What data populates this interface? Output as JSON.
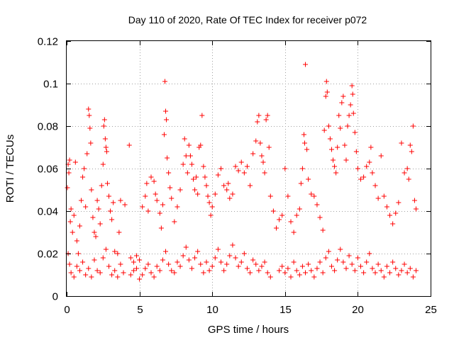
{
  "chart_data": {
    "type": "scatter",
    "title": "Day 110 of 2020, Rate Of TEC Index for receiver p072",
    "xlabel": "GPS time / hours",
    "ylabel": "ROTI / TECUs",
    "xlim": [
      0,
      25
    ],
    "ylim": [
      0,
      0.12
    ],
    "xticks": [
      "0",
      "5",
      "10",
      "15",
      "20",
      "25"
    ],
    "yticks": [
      "0",
      "0.02",
      "0.04",
      "0.06",
      "0.08",
      "0.1",
      "0.12"
    ],
    "grid": true,
    "marker": "+",
    "color": "#ff0000",
    "series": [
      {
        "points": [
          [
            0.05,
            0.051
          ],
          [
            0.1,
            0.062
          ],
          [
            0.15,
            0.058
          ],
          [
            0.2,
            0.064
          ],
          [
            0.25,
            0.035
          ],
          [
            0.3,
            0.041
          ],
          [
            0.4,
            0.03
          ],
          [
            0.5,
            0.038
          ],
          [
            0.6,
            0.063
          ],
          [
            0.7,
            0.026
          ],
          [
            0.8,
            0.02
          ],
          [
            0.9,
            0.033
          ],
          [
            1.0,
            0.045
          ],
          [
            1.1,
            0.056
          ],
          [
            1.2,
            0.06
          ],
          [
            1.3,
            0.042
          ],
          [
            1.4,
            0.067
          ],
          [
            1.5,
            0.088
          ],
          [
            1.55,
            0.085
          ],
          [
            1.6,
            0.079
          ],
          [
            1.65,
            0.072
          ],
          [
            1.7,
            0.05
          ],
          [
            1.8,
            0.037
          ],
          [
            1.9,
            0.03
          ],
          [
            2.0,
            0.028
          ],
          [
            2.1,
            0.045
          ],
          [
            2.2,
            0.041
          ],
          [
            2.3,
            0.034
          ],
          [
            2.4,
            0.052
          ],
          [
            2.5,
            0.062
          ],
          [
            2.55,
            0.08
          ],
          [
            2.6,
            0.083
          ],
          [
            2.65,
            0.074
          ],
          [
            2.7,
            0.07
          ],
          [
            2.75,
            0.068
          ],
          [
            2.8,
            0.053
          ],
          [
            2.9,
            0.047
          ],
          [
            3.0,
            0.04
          ],
          [
            3.1,
            0.036
          ],
          [
            3.2,
            0.044
          ],
          [
            3.3,
            0.021
          ],
          [
            3.5,
            0.02
          ],
          [
            3.6,
            0.03
          ],
          [
            3.7,
            0.045
          ],
          [
            4.0,
            0.043
          ],
          [
            4.3,
            0.071
          ],
          [
            4.4,
            0.018
          ],
          [
            4.6,
            0.016
          ],
          [
            4.8,
            0.019
          ],
          [
            5.0,
            0.017
          ],
          [
            5.2,
            0.042
          ],
          [
            5.4,
            0.047
          ],
          [
            5.5,
            0.053
          ],
          [
            5.6,
            0.04
          ],
          [
            5.8,
            0.056
          ],
          [
            6.0,
            0.054
          ],
          [
            6.1,
            0.048
          ],
          [
            6.2,
            0.045
          ],
          [
            6.4,
            0.039
          ],
          [
            6.5,
            0.032
          ],
          [
            6.6,
            0.043
          ],
          [
            6.7,
            0.076
          ],
          [
            6.75,
            0.101
          ],
          [
            6.8,
            0.087
          ],
          [
            6.85,
            0.083
          ],
          [
            6.9,
            0.065
          ],
          [
            7.0,
            0.058
          ],
          [
            7.1,
            0.051
          ],
          [
            7.2,
            0.046
          ],
          [
            7.4,
            0.035
          ],
          [
            7.6,
            0.042
          ],
          [
            7.8,
            0.05
          ],
          [
            8.0,
            0.062
          ],
          [
            8.1,
            0.074
          ],
          [
            8.2,
            0.066
          ],
          [
            8.3,
            0.058
          ],
          [
            8.4,
            0.071
          ],
          [
            8.5,
            0.066
          ],
          [
            8.6,
            0.062
          ],
          [
            8.7,
            0.055
          ],
          [
            8.8,
            0.05
          ],
          [
            8.9,
            0.056
          ],
          [
            9.0,
            0.048
          ],
          [
            9.1,
            0.07
          ],
          [
            9.2,
            0.071
          ],
          [
            9.3,
            0.085
          ],
          [
            9.4,
            0.061
          ],
          [
            9.5,
            0.056
          ],
          [
            9.6,
            0.052
          ],
          [
            9.7,
            0.047
          ],
          [
            9.8,
            0.044
          ],
          [
            9.9,
            0.038
          ],
          [
            10.0,
            0.042
          ],
          [
            10.2,
            0.048
          ],
          [
            10.4,
            0.057
          ],
          [
            10.6,
            0.06
          ],
          [
            10.8,
            0.052
          ],
          [
            11.0,
            0.05
          ],
          [
            11.1,
            0.053
          ],
          [
            11.2,
            0.046
          ],
          [
            11.4,
            0.048
          ],
          [
            11.6,
            0.061
          ],
          [
            11.8,
            0.059
          ],
          [
            12.0,
            0.063
          ],
          [
            12.2,
            0.058
          ],
          [
            12.4,
            0.061
          ],
          [
            12.6,
            0.052
          ],
          [
            12.8,
            0.067
          ],
          [
            13.0,
            0.073
          ],
          [
            13.1,
            0.082
          ],
          [
            13.2,
            0.085
          ],
          [
            13.3,
            0.072
          ],
          [
            13.4,
            0.066
          ],
          [
            13.5,
            0.063
          ],
          [
            13.6,
            0.058
          ],
          [
            13.7,
            0.083
          ],
          [
            13.8,
            0.085
          ],
          [
            13.9,
            0.07
          ],
          [
            14.0,
            0.047
          ],
          [
            14.2,
            0.04
          ],
          [
            14.4,
            0.032
          ],
          [
            14.6,
            0.036
          ],
          [
            14.8,
            0.038
          ],
          [
            15.0,
            0.06
          ],
          [
            15.2,
            0.047
          ],
          [
            15.4,
            0.035
          ],
          [
            15.6,
            0.03
          ],
          [
            15.8,
            0.038
          ],
          [
            16.0,
            0.041
          ],
          [
            16.1,
            0.053
          ],
          [
            16.2,
            0.06
          ],
          [
            16.3,
            0.076
          ],
          [
            16.35,
            0.072
          ],
          [
            16.4,
            0.109
          ],
          [
            16.5,
            0.069
          ],
          [
            16.6,
            0.055
          ],
          [
            16.8,
            0.048
          ],
          [
            17.0,
            0.047
          ],
          [
            17.2,
            0.043
          ],
          [
            17.4,
            0.037
          ],
          [
            17.6,
            0.031
          ],
          [
            17.7,
            0.078
          ],
          [
            17.8,
            0.094
          ],
          [
            17.85,
            0.101
          ],
          [
            17.9,
            0.096
          ],
          [
            18.0,
            0.08
          ],
          [
            18.1,
            0.074
          ],
          [
            18.2,
            0.069
          ],
          [
            18.3,
            0.064
          ],
          [
            18.4,
            0.061
          ],
          [
            18.5,
            0.058
          ],
          [
            18.6,
            0.07
          ],
          [
            18.7,
            0.085
          ],
          [
            18.8,
            0.079
          ],
          [
            18.9,
            0.091
          ],
          [
            19.0,
            0.094
          ],
          [
            19.1,
            0.071
          ],
          [
            19.2,
            0.064
          ],
          [
            19.3,
            0.08
          ],
          [
            19.4,
            0.085
          ],
          [
            19.5,
            0.09
          ],
          [
            19.6,
            0.099
          ],
          [
            19.65,
            0.095
          ],
          [
            19.7,
            0.086
          ],
          [
            19.8,
            0.077
          ],
          [
            19.9,
            0.068
          ],
          [
            20.0,
            0.06
          ],
          [
            20.2,
            0.055
          ],
          [
            20.4,
            0.056
          ],
          [
            20.6,
            0.061
          ],
          [
            20.8,
            0.063
          ],
          [
            20.9,
            0.07
          ],
          [
            21.0,
            0.058
          ],
          [
            21.2,
            0.052
          ],
          [
            21.4,
            0.046
          ],
          [
            21.6,
            0.066
          ],
          [
            21.8,
            0.047
          ],
          [
            22.0,
            0.042
          ],
          [
            22.2,
            0.038
          ],
          [
            22.4,
            0.034
          ],
          [
            22.6,
            0.039
          ],
          [
            22.8,
            0.044
          ],
          [
            23.0,
            0.072
          ],
          [
            23.2,
            0.058
          ],
          [
            23.4,
            0.06
          ],
          [
            23.5,
            0.055
          ],
          [
            23.6,
            0.071
          ],
          [
            23.7,
            0.068
          ],
          [
            23.8,
            0.08
          ],
          [
            23.9,
            0.045
          ],
          [
            24.0,
            0.041
          ],
          [
            0.1,
            0.02
          ],
          [
            0.2,
            0.015
          ],
          [
            0.3,
            0.011
          ],
          [
            0.5,
            0.009
          ],
          [
            0.7,
            0.014
          ],
          [
            0.9,
            0.012
          ],
          [
            1.1,
            0.016
          ],
          [
            1.3,
            0.01
          ],
          [
            1.5,
            0.013
          ],
          [
            1.7,
            0.009
          ],
          [
            1.9,
            0.017
          ],
          [
            2.1,
            0.012
          ],
          [
            2.3,
            0.011
          ],
          [
            2.5,
            0.018
          ],
          [
            2.7,
            0.022
          ],
          [
            2.9,
            0.014
          ],
          [
            3.1,
            0.01
          ],
          [
            3.3,
            0.012
          ],
          [
            3.5,
            0.009
          ],
          [
            3.7,
            0.015
          ],
          [
            3.9,
            0.011
          ],
          [
            4.4,
            0.01
          ],
          [
            4.6,
            0.012
          ],
          [
            4.8,
            0.013
          ],
          [
            5.0,
            0.008
          ],
          [
            5.2,
            0.01
          ],
          [
            5.4,
            0.013
          ],
          [
            5.6,
            0.015
          ],
          [
            5.8,
            0.011
          ],
          [
            6.0,
            0.009
          ],
          [
            6.2,
            0.014
          ],
          [
            6.4,
            0.012
          ],
          [
            6.6,
            0.017
          ],
          [
            6.8,
            0.021
          ],
          [
            7.0,
            0.015
          ],
          [
            7.2,
            0.012
          ],
          [
            7.4,
            0.011
          ],
          [
            7.6,
            0.016
          ],
          [
            7.8,
            0.014
          ],
          [
            8.0,
            0.019
          ],
          [
            8.2,
            0.023
          ],
          [
            8.4,
            0.017
          ],
          [
            8.6,
            0.013
          ],
          [
            8.8,
            0.018
          ],
          [
            9.0,
            0.021
          ],
          [
            9.2,
            0.015
          ],
          [
            9.4,
            0.011
          ],
          [
            9.6,
            0.016
          ],
          [
            9.8,
            0.012
          ],
          [
            10.0,
            0.014
          ],
          [
            10.2,
            0.018
          ],
          [
            10.4,
            0.022
          ],
          [
            10.6,
            0.016
          ],
          [
            10.8,
            0.012
          ],
          [
            11.0,
            0.015
          ],
          [
            11.2,
            0.019
          ],
          [
            11.4,
            0.024
          ],
          [
            11.6,
            0.018
          ],
          [
            11.8,
            0.014
          ],
          [
            12.0,
            0.016
          ],
          [
            12.2,
            0.02
          ],
          [
            12.4,
            0.013
          ],
          [
            12.6,
            0.011
          ],
          [
            12.8,
            0.017
          ],
          [
            13.0,
            0.015
          ],
          [
            13.2,
            0.012
          ],
          [
            13.4,
            0.014
          ],
          [
            13.6,
            0.016
          ],
          [
            13.8,
            0.011
          ],
          [
            14.0,
            0.009
          ],
          [
            14.6,
            0.012
          ],
          [
            14.8,
            0.014
          ],
          [
            15.0,
            0.011
          ],
          [
            15.2,
            0.013
          ],
          [
            15.4,
            0.009
          ],
          [
            15.6,
            0.016
          ],
          [
            15.8,
            0.012
          ],
          [
            16.0,
            0.01
          ],
          [
            16.2,
            0.014
          ],
          [
            16.4,
            0.011
          ],
          [
            16.6,
            0.015
          ],
          [
            16.8,
            0.012
          ],
          [
            17.0,
            0.009
          ],
          [
            17.2,
            0.013
          ],
          [
            17.4,
            0.016
          ],
          [
            17.6,
            0.011
          ],
          [
            17.8,
            0.018
          ],
          [
            18.0,
            0.021
          ],
          [
            18.2,
            0.014
          ],
          [
            18.4,
            0.012
          ],
          [
            18.6,
            0.017
          ],
          [
            18.8,
            0.022
          ],
          [
            19.0,
            0.016
          ],
          [
            19.2,
            0.013
          ],
          [
            19.4,
            0.019
          ],
          [
            19.6,
            0.015
          ],
          [
            19.8,
            0.012
          ],
          [
            20.0,
            0.018
          ],
          [
            20.2,
            0.014
          ],
          [
            20.4,
            0.011
          ],
          [
            20.6,
            0.016
          ],
          [
            20.8,
            0.02
          ],
          [
            21.0,
            0.013
          ],
          [
            21.2,
            0.011
          ],
          [
            21.4,
            0.015
          ],
          [
            21.6,
            0.012
          ],
          [
            21.8,
            0.009
          ],
          [
            22.0,
            0.014
          ],
          [
            22.2,
            0.011
          ],
          [
            22.4,
            0.016
          ],
          [
            22.6,
            0.013
          ],
          [
            22.8,
            0.01
          ],
          [
            23.0,
            0.012
          ],
          [
            23.2,
            0.015
          ],
          [
            23.4,
            0.011
          ],
          [
            23.6,
            0.013
          ],
          [
            23.8,
            0.009
          ],
          [
            24.0,
            0.012
          ]
        ]
      }
    ]
  }
}
